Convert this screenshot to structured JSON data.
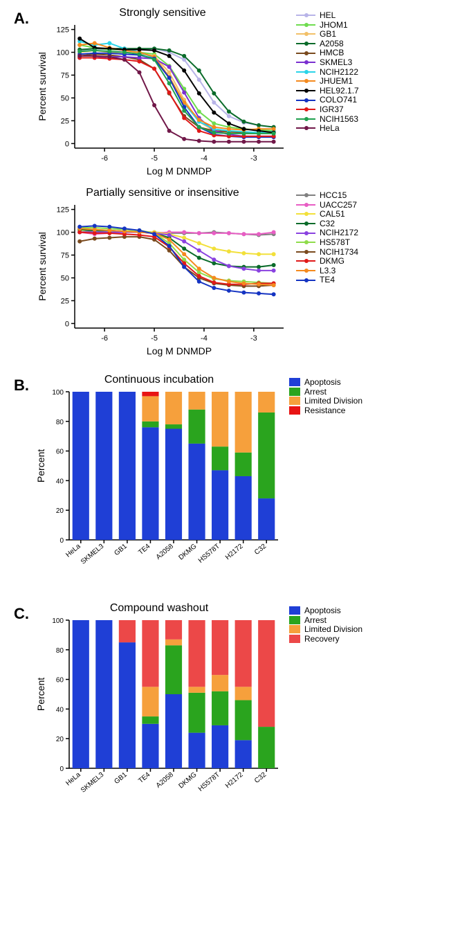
{
  "panelA": {
    "label": "A.",
    "chart1": {
      "title": "Strongly sensitive",
      "type": "line",
      "xlabel": "Log M DNMDP",
      "ylabel": "Percent survival",
      "xlim": [
        -6.6,
        -2.4
      ],
      "ylim": [
        -5,
        130
      ],
      "xticks": [
        -6,
        -5,
        -4,
        -3
      ],
      "yticks": [
        0,
        25,
        50,
        75,
        100,
        125
      ],
      "label_fontsize": 14,
      "tick_fontsize": 11,
      "background_color": "#ffffff",
      "axis_color": "#000000",
      "series": [
        {
          "name": "HEL",
          "color": "#b8b4e8",
          "x": [
            -6.5,
            -6.2,
            -5.9,
            -5.6,
            -5.3,
            -5.0,
            -4.7,
            -4.4,
            -4.1,
            -3.8,
            -3.5,
            -3.2,
            -2.9,
            -2.6
          ],
          "y": [
            102,
            104,
            103,
            102,
            103,
            104,
            100,
            92,
            70,
            45,
            30,
            23,
            20,
            18
          ]
        },
        {
          "name": "JHOM1",
          "color": "#6fdc4f",
          "x": [
            -6.5,
            -6.2,
            -5.9,
            -5.6,
            -5.3,
            -5.0,
            -4.7,
            -4.4,
            -4.1,
            -3.8,
            -3.5,
            -3.2,
            -2.9,
            -2.6
          ],
          "y": [
            108,
            105,
            103,
            103,
            100,
            98,
            85,
            60,
            35,
            22,
            18,
            16,
            15,
            14
          ]
        },
        {
          "name": "GB1",
          "color": "#f2c068",
          "x": [
            -6.5,
            -6.2,
            -5.9,
            -5.6,
            -5.3,
            -5.0,
            -4.7,
            -4.4,
            -4.1,
            -3.8,
            -3.5,
            -3.2,
            -2.9,
            -2.6
          ],
          "y": [
            100,
            102,
            100,
            100,
            99,
            96,
            78,
            48,
            24,
            14,
            12,
            11,
            11,
            11
          ]
        },
        {
          "name": "A2058",
          "color": "#0a6b2a",
          "x": [
            -6.5,
            -6.2,
            -5.9,
            -5.6,
            -5.3,
            -5.0,
            -4.7,
            -4.4,
            -4.1,
            -3.8,
            -3.5,
            -3.2,
            -2.9,
            -2.6
          ],
          "y": [
            103,
            104,
            104,
            104,
            104,
            104,
            102,
            96,
            80,
            55,
            35,
            24,
            20,
            18
          ]
        },
        {
          "name": "HMCB",
          "color": "#7a4a1e",
          "x": [
            -6.5,
            -6.2,
            -5.9,
            -5.6,
            -5.3,
            -5.0,
            -4.7,
            -4.4,
            -4.1,
            -3.8,
            -3.5,
            -3.2,
            -2.9,
            -2.6
          ],
          "y": [
            96,
            98,
            97,
            95,
            92,
            82,
            55,
            30,
            18,
            14,
            13,
            12,
            12,
            12
          ]
        },
        {
          "name": "SKMEL3",
          "color": "#7a2fd0",
          "x": [
            -6.5,
            -6.2,
            -5.9,
            -5.6,
            -5.3,
            -5.0,
            -4.7,
            -4.4,
            -4.1,
            -3.8,
            -3.5,
            -3.2,
            -2.9,
            -2.6
          ],
          "y": [
            94,
            94,
            95,
            95,
            94,
            93,
            84,
            56,
            28,
            14,
            10,
            8,
            8,
            8
          ]
        },
        {
          "name": "NCIH2122",
          "color": "#2ad4e8",
          "x": [
            -6.5,
            -6.2,
            -5.9,
            -5.6,
            -5.3,
            -5.0,
            -4.7,
            -4.4,
            -4.1,
            -3.8,
            -3.5,
            -3.2,
            -2.9,
            -2.6
          ],
          "y": [
            112,
            108,
            110,
            104,
            100,
            94,
            72,
            44,
            24,
            16,
            14,
            13,
            12,
            13
          ]
        },
        {
          "name": "JHUEM1",
          "color": "#f48a1e",
          "x": [
            -6.5,
            -6.2,
            -5.9,
            -5.6,
            -5.3,
            -5.0,
            -4.7,
            -4.4,
            -4.1,
            -3.8,
            -3.5,
            -3.2,
            -2.9,
            -2.6
          ],
          "y": [
            108,
            110,
            105,
            102,
            100,
            95,
            73,
            45,
            26,
            18,
            16,
            15,
            16,
            16
          ]
        },
        {
          "name": "HEL92.1.7",
          "color": "#000000",
          "x": [
            -6.5,
            -6.2,
            -5.9,
            -5.6,
            -5.3,
            -5.0,
            -4.7,
            -4.4,
            -4.1,
            -3.8,
            -3.5,
            -3.2,
            -2.9,
            -2.6
          ],
          "y": [
            115,
            105,
            104,
            103,
            103,
            102,
            96,
            80,
            55,
            34,
            22,
            16,
            14,
            12
          ]
        },
        {
          "name": "COLO741",
          "color": "#1534c2",
          "x": [
            -6.5,
            -6.2,
            -5.9,
            -5.6,
            -5.3,
            -5.0,
            -4.7,
            -4.4,
            -4.1,
            -3.8,
            -3.5,
            -3.2,
            -2.9,
            -2.6
          ],
          "y": [
            98,
            99,
            99,
            98,
            97,
            93,
            72,
            40,
            18,
            10,
            8,
            7,
            7,
            7
          ]
        },
        {
          "name": "IGR37",
          "color": "#e01818",
          "x": [
            -6.5,
            -6.2,
            -5.9,
            -5.6,
            -5.3,
            -5.0,
            -4.7,
            -4.4,
            -4.1,
            -3.8,
            -3.5,
            -3.2,
            -2.9,
            -2.6
          ],
          "y": [
            94,
            94,
            93,
            92,
            90,
            82,
            56,
            28,
            14,
            9,
            8,
            8,
            8,
            8
          ]
        },
        {
          "name": "NCIH1563",
          "color": "#1fa04e",
          "x": [
            -6.5,
            -6.2,
            -5.9,
            -5.6,
            -5.3,
            -5.0,
            -4.7,
            -4.4,
            -4.1,
            -3.8,
            -3.5,
            -3.2,
            -2.9,
            -2.6
          ],
          "y": [
            101,
            102,
            101,
            100,
            98,
            92,
            66,
            36,
            18,
            12,
            11,
            11,
            11,
            11
          ]
        },
        {
          "name": "HeLa",
          "color": "#701748",
          "x": [
            -6.5,
            -6.2,
            -5.9,
            -5.6,
            -5.3,
            -5.0,
            -4.7,
            -4.4,
            -4.1,
            -3.8,
            -3.5,
            -3.2,
            -2.9,
            -2.6
          ],
          "y": [
            96,
            96,
            95,
            92,
            78,
            42,
            14,
            5,
            3,
            2,
            2,
            2,
            2,
            2
          ]
        }
      ]
    },
    "chart2": {
      "title": "Partially sensitive or insensitive",
      "type": "line",
      "xlabel": "Log M DNMDP",
      "ylabel": "Percent survival",
      "xlim": [
        -6.6,
        -2.4
      ],
      "ylim": [
        -5,
        130
      ],
      "xticks": [
        -6,
        -5,
        -4,
        -3
      ],
      "yticks": [
        0,
        25,
        50,
        75,
        100,
        125
      ],
      "label_fontsize": 14,
      "tick_fontsize": 11,
      "background_color": "#ffffff",
      "axis_color": "#000000",
      "series": [
        {
          "name": "HCC15",
          "color": "#808080",
          "x": [
            -6.5,
            -6.2,
            -5.9,
            -5.6,
            -5.3,
            -5.0,
            -4.7,
            -4.4,
            -4.1,
            -3.8,
            -3.5,
            -3.2,
            -2.9,
            -2.6
          ],
          "y": [
            100,
            102,
            100,
            101,
            100,
            100,
            99,
            99,
            99,
            100,
            99,
            98,
            97,
            98
          ]
        },
        {
          "name": "UACC257",
          "color": "#e85dc4",
          "x": [
            -6.5,
            -6.2,
            -5.9,
            -5.6,
            -5.3,
            -5.0,
            -4.7,
            -4.4,
            -4.1,
            -3.8,
            -3.5,
            -3.2,
            -2.9,
            -2.6
          ],
          "y": [
            100,
            98,
            99,
            100,
            100,
            99,
            100,
            100,
            99,
            99,
            99,
            98,
            98,
            100
          ]
        },
        {
          "name": "CAL51",
          "color": "#f2e03a",
          "x": [
            -6.5,
            -6.2,
            -5.9,
            -5.6,
            -5.3,
            -5.0,
            -4.7,
            -4.4,
            -4.1,
            -3.8,
            -3.5,
            -3.2,
            -2.9,
            -2.6
          ],
          "y": [
            102,
            103,
            102,
            101,
            101,
            100,
            98,
            94,
            88,
            82,
            79,
            77,
            76,
            76
          ]
        },
        {
          "name": "C32",
          "color": "#0a6b2a",
          "x": [
            -6.5,
            -6.2,
            -5.9,
            -5.6,
            -5.3,
            -5.0,
            -4.7,
            -4.4,
            -4.1,
            -3.8,
            -3.5,
            -3.2,
            -2.9,
            -2.6
          ],
          "y": [
            103,
            102,
            102,
            101,
            100,
            99,
            94,
            82,
            72,
            66,
            63,
            62,
            62,
            64
          ]
        },
        {
          "name": "NCIH2172",
          "color": "#8a42e0",
          "x": [
            -6.5,
            -6.2,
            -5.9,
            -5.6,
            -5.3,
            -5.0,
            -4.7,
            -4.4,
            -4.1,
            -3.8,
            -3.5,
            -3.2,
            -2.9,
            -2.6
          ],
          "y": [
            100,
            100,
            100,
            100,
            100,
            99,
            97,
            90,
            80,
            70,
            63,
            60,
            58,
            58
          ]
        },
        {
          "name": "HS578T",
          "color": "#8fdc4a",
          "x": [
            -6.5,
            -6.2,
            -5.9,
            -5.6,
            -5.3,
            -5.0,
            -4.7,
            -4.4,
            -4.1,
            -3.8,
            -3.5,
            -3.2,
            -2.9,
            -2.6
          ],
          "y": [
            105,
            105,
            104,
            103,
            102,
            99,
            88,
            70,
            56,
            49,
            47,
            46,
            45,
            44
          ]
        },
        {
          "name": "NCIH1734",
          "color": "#7a4a1e",
          "x": [
            -6.5,
            -6.2,
            -5.9,
            -5.6,
            -5.3,
            -5.0,
            -4.7,
            -4.4,
            -4.1,
            -3.8,
            -3.5,
            -3.2,
            -2.9,
            -2.6
          ],
          "y": [
            90,
            93,
            94,
            95,
            95,
            92,
            80,
            62,
            50,
            44,
            42,
            41,
            41,
            42
          ]
        },
        {
          "name": "DKMG",
          "color": "#e01818",
          "x": [
            -6.5,
            -6.2,
            -5.9,
            -5.6,
            -5.3,
            -5.0,
            -4.7,
            -4.4,
            -4.1,
            -3.8,
            -3.5,
            -3.2,
            -2.9,
            -2.6
          ],
          "y": [
            100,
            99,
            99,
            98,
            97,
            95,
            84,
            66,
            52,
            45,
            43,
            43,
            44,
            44
          ]
        },
        {
          "name": "L3.3",
          "color": "#f48a1e",
          "x": [
            -6.5,
            -6.2,
            -5.9,
            -5.6,
            -5.3,
            -5.0,
            -4.7,
            -4.4,
            -4.1,
            -3.8,
            -3.5,
            -3.2,
            -2.9,
            -2.6
          ],
          "y": [
            104,
            103,
            102,
            101,
            100,
            99,
            92,
            76,
            60,
            50,
            46,
            44,
            43,
            42
          ]
        },
        {
          "name": "TE4",
          "color": "#1534c2",
          "x": [
            -6.5,
            -6.2,
            -5.9,
            -5.6,
            -5.3,
            -5.0,
            -4.7,
            -4.4,
            -4.1,
            -3.8,
            -3.5,
            -3.2,
            -2.9,
            -2.6
          ],
          "y": [
            106,
            107,
            106,
            104,
            102,
            98,
            85,
            62,
            46,
            39,
            36,
            34,
            33,
            32
          ]
        }
      ]
    }
  },
  "panelB": {
    "label": "B.",
    "chart": {
      "title": "Continuous incubation",
      "type": "stacked-bar",
      "ylabel": "Percent",
      "ylim": [
        0,
        100
      ],
      "yticks": [
        0,
        20,
        40,
        60,
        80,
        100
      ],
      "label_fontsize": 14,
      "tick_fontsize": 10,
      "background_color": "#ffffff",
      "axis_color": "#000000",
      "bar_width": 0.72,
      "categories": [
        "HeLa",
        "SKMEL3",
        "GB1",
        "TE4",
        "A2058",
        "DKMG",
        "HS578T",
        "H2172",
        "C32"
      ],
      "stack_order": [
        "Apoptosis",
        "Arrest",
        "Limited Division",
        "Resistance"
      ],
      "colors": {
        "Apoptosis": "#1f3fd6",
        "Arrest": "#2aa41e",
        "Limited Division": "#f6a03c",
        "Resistance": "#e81414"
      },
      "data": {
        "HeLa": {
          "Apoptosis": 100,
          "Arrest": 0,
          "Limited Division": 0,
          "Resistance": 0
        },
        "SKMEL3": {
          "Apoptosis": 100,
          "Arrest": 0,
          "Limited Division": 0,
          "Resistance": 0
        },
        "GB1": {
          "Apoptosis": 100,
          "Arrest": 0,
          "Limited Division": 0,
          "Resistance": 0
        },
        "TE4": {
          "Apoptosis": 76,
          "Arrest": 4,
          "Limited Division": 17,
          "Resistance": 3
        },
        "A2058": {
          "Apoptosis": 75,
          "Arrest": 3,
          "Limited Division": 22,
          "Resistance": 0
        },
        "DKMG": {
          "Apoptosis": 65,
          "Arrest": 23,
          "Limited Division": 12,
          "Resistance": 0
        },
        "HS578T": {
          "Apoptosis": 47,
          "Arrest": 16,
          "Limited Division": 37,
          "Resistance": 0
        },
        "H2172": {
          "Apoptosis": 43,
          "Arrest": 16,
          "Limited Division": 41,
          "Resistance": 0
        },
        "C32": {
          "Apoptosis": 28,
          "Arrest": 58,
          "Limited Division": 14,
          "Resistance": 0
        }
      }
    }
  },
  "panelC": {
    "label": "C.",
    "chart": {
      "title": "Compound washout",
      "type": "stacked-bar",
      "ylabel": "Percent",
      "ylim": [
        0,
        100
      ],
      "yticks": [
        0,
        20,
        40,
        60,
        80,
        100
      ],
      "label_fontsize": 14,
      "tick_fontsize": 10,
      "background_color": "#ffffff",
      "axis_color": "#000000",
      "bar_width": 0.72,
      "categories": [
        "HeLa",
        "SKMEL3",
        "GB1",
        "TE4",
        "A2058",
        "DKMG",
        "HS578T",
        "H2172",
        "C32"
      ],
      "stack_order": [
        "Apoptosis",
        "Arrest",
        "Limited Division",
        "Recovery"
      ],
      "colors": {
        "Apoptosis": "#1f3fd6",
        "Arrest": "#2aa41e",
        "Limited Division": "#f6a03c",
        "Recovery": "#ec4848"
      },
      "data": {
        "HeLa": {
          "Apoptosis": 100,
          "Arrest": 0,
          "Limited Division": 0,
          "Recovery": 0
        },
        "SKMEL3": {
          "Apoptosis": 100,
          "Arrest": 0,
          "Limited Division": 0,
          "Recovery": 0
        },
        "GB1": {
          "Apoptosis": 85,
          "Arrest": 0,
          "Limited Division": 0,
          "Recovery": 15
        },
        "TE4": {
          "Apoptosis": 30,
          "Arrest": 5,
          "Limited Division": 20,
          "Recovery": 45
        },
        "A2058": {
          "Apoptosis": 50,
          "Arrest": 33,
          "Limited Division": 4,
          "Recovery": 13
        },
        "DKMG": {
          "Apoptosis": 24,
          "Arrest": 27,
          "Limited Division": 4,
          "Recovery": 45
        },
        "HS578T": {
          "Apoptosis": 29,
          "Arrest": 23,
          "Limited Division": 11,
          "Recovery": 37
        },
        "H2172": {
          "Apoptosis": 19,
          "Arrest": 27,
          "Limited Division": 9,
          "Recovery": 45
        },
        "C32": {
          "Apoptosis": 0,
          "Arrest": 28,
          "Limited Division": 0,
          "Recovery": 72
        }
      }
    }
  }
}
